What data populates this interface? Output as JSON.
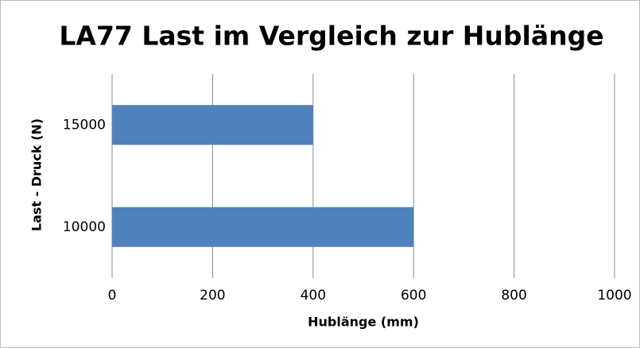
{
  "chart_data": {
    "type": "barh",
    "title": "LA77 Last im Vergleich zur Hublänge",
    "x_label": "Hublänge (mm)",
    "y_label": "Last - Druck (N)",
    "categories": [
      "10000",
      "15000"
    ],
    "values": [
      600,
      400
    ],
    "color": "#4f81bd",
    "xlim": [
      0,
      1000
    ],
    "xticks": [
      0,
      200,
      400,
      600,
      800,
      1000
    ],
    "grid": true
  }
}
